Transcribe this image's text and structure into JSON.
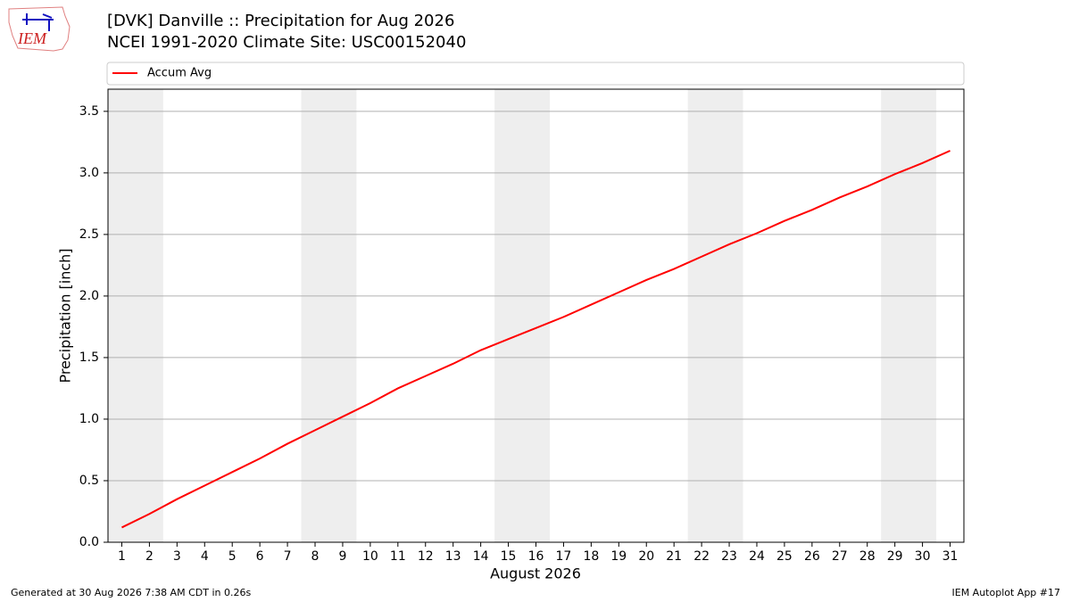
{
  "logo_text": "IEM",
  "footer": {
    "left": "Generated at 30 Aug 2026 7:38 AM CDT in 0.26s",
    "right": "IEM Autoplot App #17"
  },
  "chart_data": {
    "type": "line",
    "title": "[DVK] Danville :: Precipitation for Aug 2026",
    "subtitle": "NCEI 1991-2020 Climate Site: USC00152040",
    "xlabel": "August 2026",
    "ylabel": "Precipitation [inch]",
    "x": [
      1,
      2,
      3,
      4,
      5,
      6,
      7,
      8,
      9,
      10,
      11,
      12,
      13,
      14,
      15,
      16,
      17,
      18,
      19,
      20,
      21,
      22,
      23,
      24,
      25,
      26,
      27,
      28,
      29,
      30,
      31
    ],
    "series": [
      {
        "name": "Accum Avg",
        "color": "#ff0000",
        "values": [
          0.12,
          0.23,
          0.35,
          0.46,
          0.57,
          0.68,
          0.8,
          0.91,
          1.02,
          1.13,
          1.25,
          1.35,
          1.45,
          1.56,
          1.65,
          1.74,
          1.83,
          1.93,
          2.03,
          2.13,
          2.22,
          2.32,
          2.42,
          2.51,
          2.61,
          2.7,
          2.8,
          2.89,
          2.99,
          3.08,
          3.18
        ]
      }
    ],
    "xlim": [
      0.5,
      31.5
    ],
    "ylim": [
      0,
      3.68
    ],
    "xticks": [
      1,
      2,
      3,
      4,
      5,
      6,
      7,
      8,
      9,
      10,
      11,
      12,
      13,
      14,
      15,
      16,
      17,
      18,
      19,
      20,
      21,
      22,
      23,
      24,
      25,
      26,
      27,
      28,
      29,
      30,
      31
    ],
    "yticks": [
      {
        "value": 0,
        "label": "0.0"
      },
      0.5,
      {
        "value": 1,
        "label": "1.0"
      },
      1.5,
      {
        "value": 2,
        "label": "2.0"
      },
      2.5,
      {
        "value": 3,
        "label": "3.0"
      },
      3.5
    ],
    "shaded_spans": [
      [
        0.5,
        2.5
      ],
      [
        7.5,
        9.5
      ],
      [
        14.5,
        16.5
      ],
      [
        21.5,
        23.5
      ],
      [
        28.5,
        30.5
      ]
    ],
    "shade_color": "#eeeeee",
    "grid": true,
    "legend": "top"
  }
}
